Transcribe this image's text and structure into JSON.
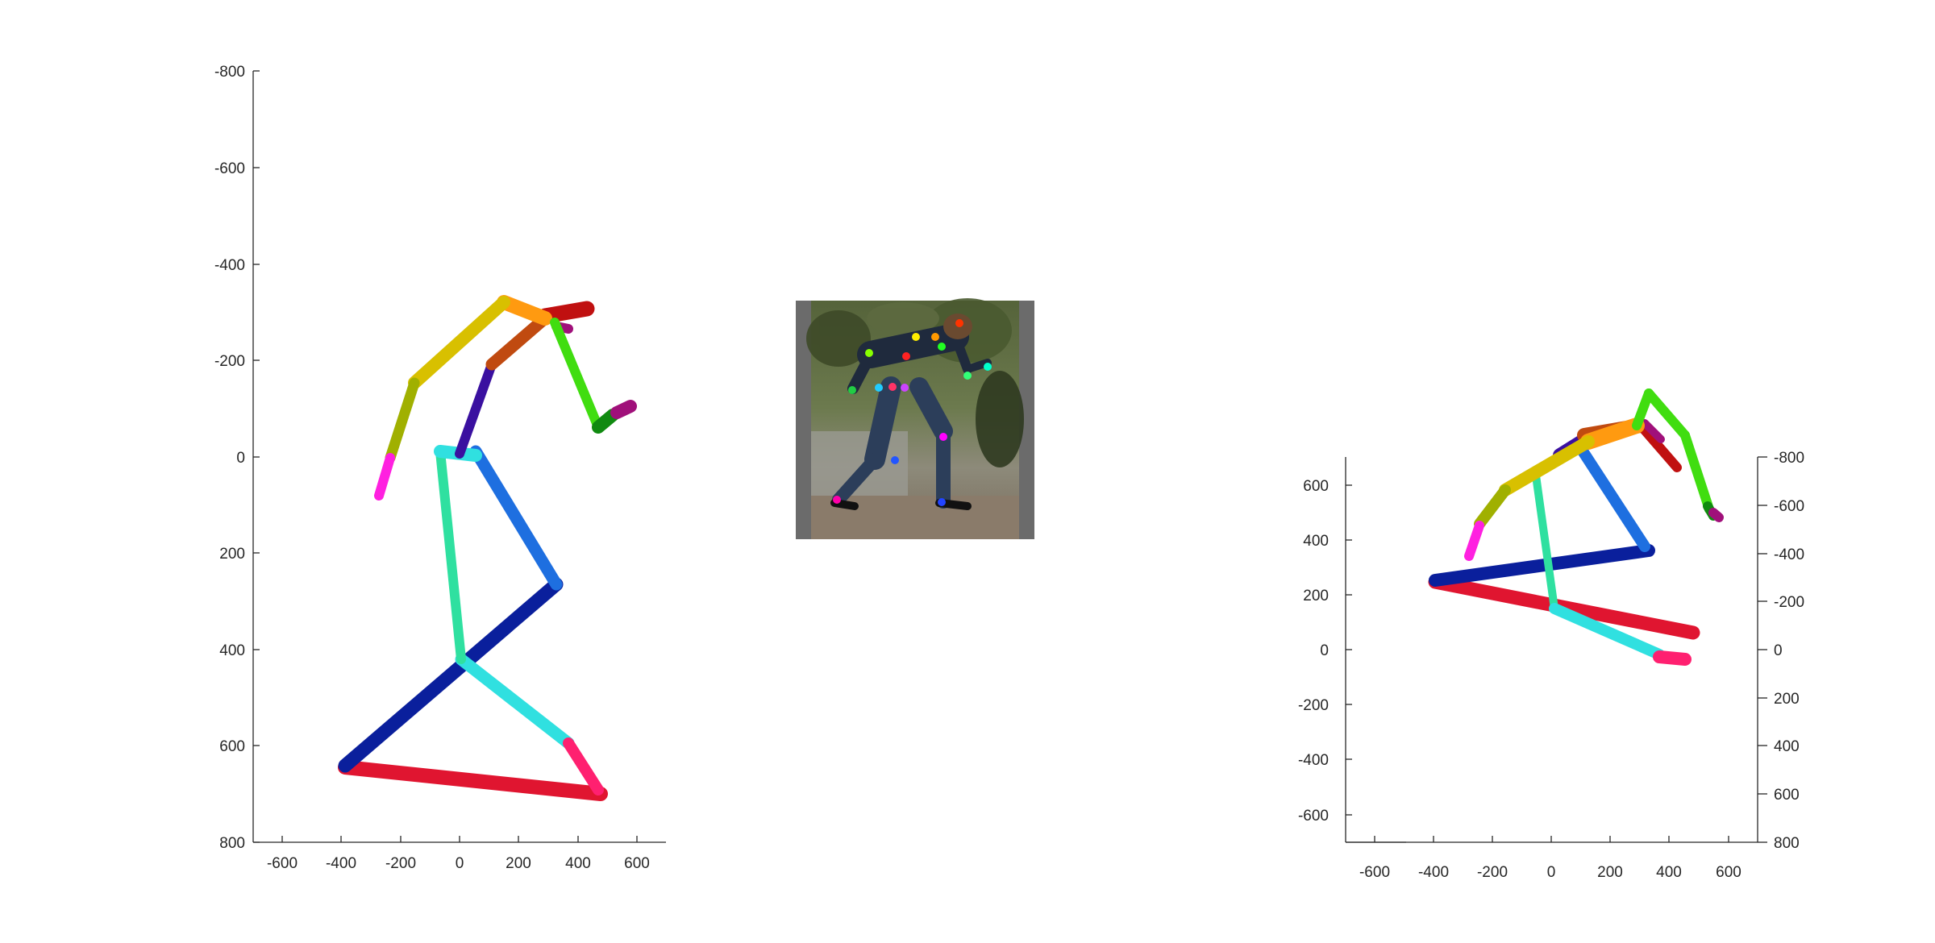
{
  "left_plot": {
    "y_ticks": [
      "-800",
      "-600",
      "-400",
      "-200",
      "0",
      "200",
      "400",
      "600",
      "800"
    ],
    "x_ticks": [
      "-600",
      "-400",
      "-200",
      "0",
      "200",
      "400",
      "600"
    ]
  },
  "right_plot": {
    "left_y_ticks": [
      "600",
      "400",
      "200",
      "0",
      "-200",
      "-400",
      "-600"
    ],
    "right_y_ticks": [
      "-800",
      "-600",
      "-400",
      "-200",
      "0",
      "200",
      "400",
      "600",
      "800"
    ],
    "x_ticks": [
      "-600",
      "-400",
      "-200",
      "0",
      "200",
      "400",
      "600"
    ]
  },
  "photo": {
    "keypoint_colors": [
      "#ff3300",
      "#ffee00",
      "#ff9900",
      "#22ff22",
      "#88ff00",
      "#00ffcc",
      "#33ff77",
      "#ff2222",
      "#22cc44",
      "#22ccff",
      "#ff3366",
      "#cc44ff",
      "#ff00ff",
      "#2255ff",
      "#ff00aa",
      "#2244ff"
    ]
  },
  "skeleton_colors": {
    "pelvis_left": "#e01530",
    "pelvis_right": "#0a1f9c",
    "hip_to_knee_a": "#1e6fe0",
    "spine": "#2fe0a0",
    "leg_b": "#30e0e0",
    "foot_b": "#ff2070",
    "arm_upper": "#d8c000",
    "arm_lower": "#a0b000",
    "hand": "#ff20e0",
    "shoulder": "#ff9a10",
    "head": "#c01010",
    "neck": "#c04a10",
    "spine_upper": "#3a10a0",
    "forearm_green": "#40dd10",
    "hand_green": "#108a10",
    "head_magenta": "#a0107a"
  }
}
